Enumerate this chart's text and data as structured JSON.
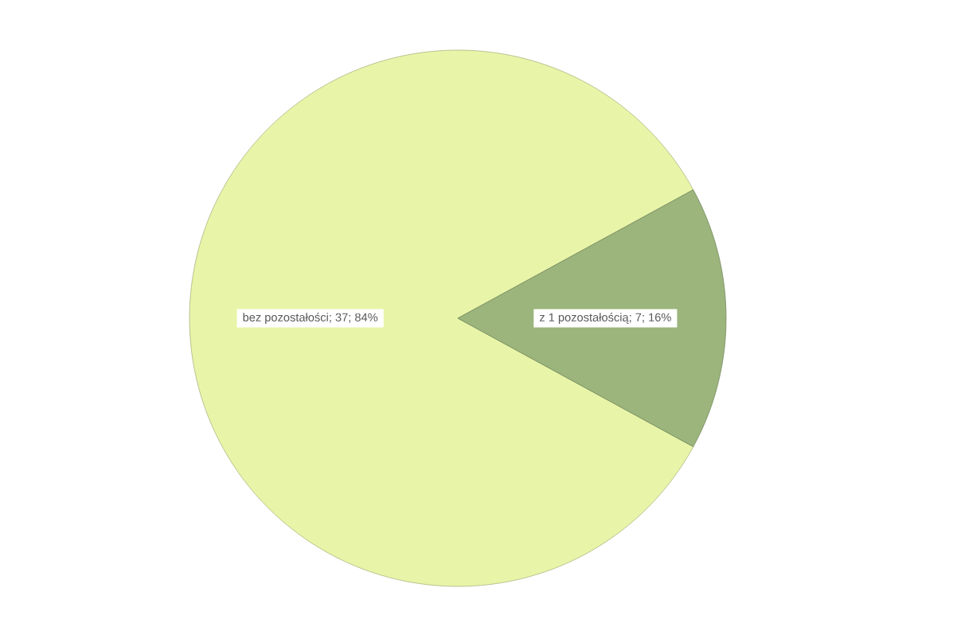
{
  "chart_data": {
    "type": "pie",
    "categories": [
      "bez pozostałości",
      "z 1 pozostałością"
    ],
    "values": [
      37,
      7
    ],
    "value_labels": [
      "; 37; 84%",
      "; 7; 16%"
    ],
    "colors": [
      "#e8f5a8",
      "#9bb57c"
    ]
  }
}
